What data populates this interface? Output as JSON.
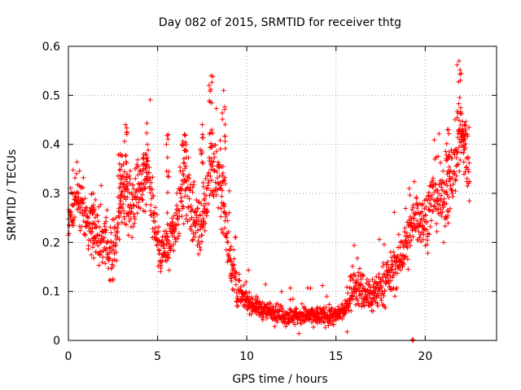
{
  "chart_data": {
    "type": "scatter",
    "title": "Day 082 of 2015, SRMTID for receiver thtg",
    "xlabel": "GPS time / hours",
    "ylabel": "SRMTID / TECUs",
    "xlim": [
      0,
      24
    ],
    "ylim": [
      0,
      0.6
    ],
    "xticks": [
      0,
      5,
      10,
      15,
      20
    ],
    "yticks": [
      0,
      0.1,
      0.2,
      0.3,
      0.4,
      0.5,
      0.6
    ],
    "xtick_labels": [
      "0",
      "5",
      "10",
      "15",
      "20"
    ],
    "ytick_labels": [
      "0",
      "0.1",
      "0.2",
      "0.3",
      "0.4",
      "0.5",
      "0.6"
    ],
    "grid": true,
    "marker": "+",
    "color": "#ff0000",
    "trend": [
      [
        0.0,
        0.25
      ],
      [
        0.5,
        0.3
      ],
      [
        1.0,
        0.25
      ],
      [
        1.5,
        0.22
      ],
      [
        2.0,
        0.2
      ],
      [
        2.5,
        0.17
      ],
      [
        3.0,
        0.3
      ],
      [
        3.5,
        0.28
      ],
      [
        4.0,
        0.32
      ],
      [
        4.5,
        0.34
      ],
      [
        5.0,
        0.2
      ],
      [
        5.5,
        0.18
      ],
      [
        6.0,
        0.22
      ],
      [
        6.5,
        0.33
      ],
      [
        7.0,
        0.25
      ],
      [
        7.5,
        0.22
      ],
      [
        8.0,
        0.36
      ],
      [
        8.5,
        0.33
      ],
      [
        9.0,
        0.18
      ],
      [
        9.5,
        0.1
      ],
      [
        10.0,
        0.08
      ],
      [
        10.5,
        0.07
      ],
      [
        11.0,
        0.06
      ],
      [
        11.5,
        0.06
      ],
      [
        12.0,
        0.05
      ],
      [
        12.5,
        0.05
      ],
      [
        13.0,
        0.05
      ],
      [
        13.5,
        0.05
      ],
      [
        14.0,
        0.05
      ],
      [
        14.5,
        0.05
      ],
      [
        15.0,
        0.05
      ],
      [
        15.5,
        0.06
      ],
      [
        16.0,
        0.12
      ],
      [
        16.5,
        0.1
      ],
      [
        17.0,
        0.09
      ],
      [
        17.5,
        0.11
      ],
      [
        18.0,
        0.13
      ],
      [
        18.5,
        0.16
      ],
      [
        19.0,
        0.2
      ],
      [
        19.5,
        0.26
      ],
      [
        20.0,
        0.24
      ],
      [
        20.5,
        0.3
      ],
      [
        21.0,
        0.28
      ],
      [
        21.5,
        0.33
      ],
      [
        22.0,
        0.42
      ],
      [
        22.5,
        0.35
      ]
    ],
    "peaks": [
      [
        1.4,
        0.3
      ],
      [
        2.9,
        0.38
      ],
      [
        3.2,
        0.44
      ],
      [
        4.3,
        0.38
      ],
      [
        5.6,
        0.42
      ],
      [
        6.5,
        0.42
      ],
      [
        7.5,
        0.44
      ],
      [
        8.0,
        0.54
      ],
      [
        8.7,
        0.51
      ],
      [
        21.3,
        0.43
      ],
      [
        21.9,
        0.57
      ],
      [
        22.2,
        0.44
      ]
    ],
    "outliers": [
      [
        19.3,
        0.0
      ]
    ]
  }
}
